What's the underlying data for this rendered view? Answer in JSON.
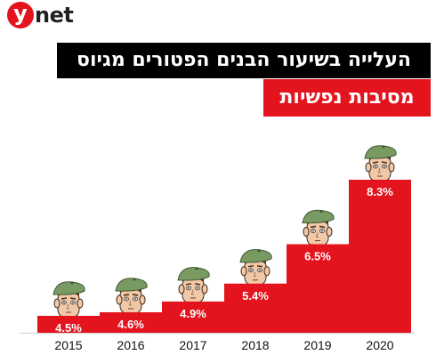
{
  "brand": {
    "logo_letter": "y",
    "logo_suffix": "net",
    "accent": "#e3141e"
  },
  "header": {
    "title_line1": "העלייה בשיעור הבנים הפטורים מגיוס",
    "title_line2": "מסיבות נפשיות"
  },
  "chart_data": {
    "type": "bar",
    "categories": [
      "2015",
      "2016",
      "2017",
      "2018",
      "2019",
      "2020"
    ],
    "values": [
      4.5,
      4.6,
      4.9,
      5.4,
      6.5,
      8.3
    ],
    "value_labels": [
      "4.5%",
      "4.6%",
      "4.9%",
      "5.4%",
      "6.5%",
      "8.3%"
    ],
    "title": "העלייה בשיעור הבנים הפטורים מגיוס מסיבות נפשיות",
    "xlabel": "",
    "ylabel": "",
    "bar_color": "#e3141e",
    "grid": false,
    "legend": "none"
  }
}
